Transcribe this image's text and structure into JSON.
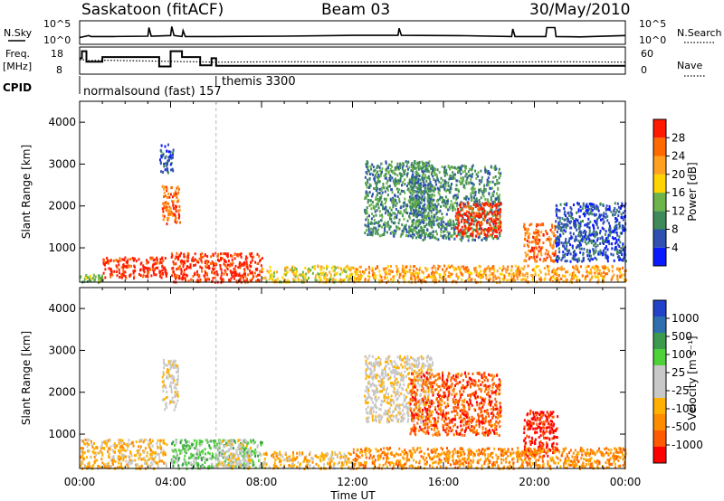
{
  "header": {
    "station": "Saskatoon (fitACF)",
    "beam": "Beam 03",
    "date": "30/May/2010"
  },
  "colors": {
    "power": [
      "#0a1aff",
      "#2f50b0",
      "#3e8a5a",
      "#6db54a",
      "#ffd400",
      "#ffa020",
      "#ff6a00",
      "#ff1a00"
    ],
    "velocity": [
      "#ff0000",
      "#ff5a00",
      "#ff8c00",
      "#ffb000",
      "#c8c8c8",
      "#c8c8c8",
      "#4fd13a",
      "#3c9a4f",
      "#2f6fb0",
      "#2342c8"
    ]
  },
  "chart_data": [
    {
      "type": "line",
      "name": "n-sky-n-search",
      "left_label": "N.Sky",
      "right_label": "N.Search",
      "ytick_left": [
        "10^5",
        "10^0"
      ],
      "ytick_right": [
        "10^5",
        "10^0"
      ],
      "xlim": [
        0,
        24
      ],
      "series": [
        {
          "name": "N.Sky",
          "x": [
            0,
            0.4,
            0.5,
            1.5,
            3.0,
            3.05,
            3.15,
            4.0,
            4.05,
            4.15,
            4.5,
            4.55,
            4.65,
            6,
            9,
            12,
            14,
            14.05,
            14.15,
            17,
            19.0,
            19.05,
            19.15,
            20.5,
            20.55,
            20.9,
            20.95,
            22,
            24
          ],
          "y": [
            0.25,
            0.35,
            0.3,
            0.3,
            0.32,
            0.75,
            0.32,
            0.35,
            0.8,
            0.35,
            0.3,
            0.6,
            0.3,
            0.3,
            0.32,
            0.36,
            0.36,
            0.72,
            0.36,
            0.34,
            0.3,
            0.68,
            0.3,
            0.3,
            0.75,
            0.75,
            0.3,
            0.28,
            0.35
          ]
        }
      ]
    },
    {
      "type": "line",
      "name": "freq-nave",
      "left_label": "Freq.",
      "left_unit": "[MHz]",
      "right_label": "Nave",
      "ytick_left": [
        "18",
        "8"
      ],
      "ytick_right": [
        "60",
        "0"
      ],
      "cpid_label": "CPID",
      "program_labels": [
        "normalsound (fast) 157",
        "themis 3300"
      ],
      "program_change_x": 6,
      "series": [
        {
          "name": "Freq.",
          "x": [
            0,
            0.1,
            0.1,
            0.3,
            0.3,
            1.0,
            1.0,
            3.5,
            3.5,
            4.0,
            4.0,
            4.5,
            4.5,
            5.3,
            5.3,
            5.8,
            5.8,
            6.0,
            6.0,
            24
          ],
          "y": [
            14,
            14,
            17,
            17,
            12.5,
            12.5,
            14.5,
            14.5,
            10.5,
            10.5,
            17,
            17,
            14.5,
            14.5,
            11,
            11,
            14,
            14,
            10.8,
            10.8
          ]
        },
        {
          "name": "Nave",
          "x": [
            0,
            0.3,
            0.3,
            1.0,
            6,
            9,
            12,
            15,
            18,
            21,
            24
          ],
          "y": [
            32,
            32,
            30,
            31,
            26,
            27,
            26,
            27,
            26,
            27,
            26
          ]
        }
      ]
    },
    {
      "type": "heatmap",
      "name": "power",
      "ylabel": "Slant Range [km]",
      "colorbar_label": "Power [dB]",
      "colorbar_ticks": [
        "28",
        "24",
        "20",
        "16",
        "12",
        "8",
        "4"
      ],
      "xlim": [
        0,
        24
      ],
      "ylim": [
        180,
        4500
      ],
      "yticks": [
        1000,
        2000,
        3000,
        4000
      ],
      "blobs": [
        {
          "x0": 0.0,
          "x1": 1.0,
          "r0": 200,
          "r1": 400,
          "level": 3
        },
        {
          "x0": 1.0,
          "x1": 3.8,
          "r0": 300,
          "r1": 800,
          "level": 7
        },
        {
          "x0": 3.6,
          "x1": 4.4,
          "r0": 1600,
          "r1": 2500,
          "level": 6
        },
        {
          "x0": 3.5,
          "x1": 4.1,
          "r0": 2800,
          "r1": 3500,
          "level": 1
        },
        {
          "x0": 4.0,
          "x1": 8.0,
          "r0": 200,
          "r1": 900,
          "level": 7
        },
        {
          "x0": 8.0,
          "x1": 12.0,
          "r0": 200,
          "r1": 600,
          "level": 4
        },
        {
          "x0": 12.5,
          "x1": 15.5,
          "r0": 1300,
          "r1": 3100,
          "level": 2
        },
        {
          "x0": 14.5,
          "x1": 18.5,
          "r0": 1200,
          "r1": 3000,
          "level": 2
        },
        {
          "x0": 16.5,
          "x1": 18.5,
          "r0": 1300,
          "r1": 2100,
          "level": 7
        },
        {
          "x0": 19.5,
          "x1": 20.9,
          "r0": 700,
          "r1": 1600,
          "level": 6
        },
        {
          "x0": 12.0,
          "x1": 24.0,
          "r0": 200,
          "r1": 600,
          "level": 5
        },
        {
          "x0": 20.9,
          "x1": 24.0,
          "r0": 700,
          "r1": 2100,
          "level": 1
        }
      ]
    },
    {
      "type": "heatmap",
      "name": "velocity",
      "ylabel": "Slant Range [km]",
      "colorbar_label": "Velocity [m s⁻¹]",
      "colorbar_ticks": [
        "1000",
        "500",
        "100",
        "25",
        "-25",
        "-100",
        "-500",
        "-1000"
      ],
      "xlabel": "Time UT",
      "xticks": [
        "00:00",
        "04:00",
        "08:00",
        "12:00",
        "16:00",
        "20:00",
        "00:00"
      ],
      "xlim": [
        0,
        24
      ],
      "ylim": [
        180,
        4500
      ],
      "yticks": [
        1000,
        2000,
        3000,
        4000
      ],
      "blobs": [
        {
          "x0": 0.0,
          "x1": 3.8,
          "r0": 200,
          "r1": 900,
          "level": 3
        },
        {
          "x0": 3.6,
          "x1": 4.3,
          "r0": 1600,
          "r1": 2800,
          "level": 4
        },
        {
          "x0": 4.0,
          "x1": 8.0,
          "r0": 200,
          "r1": 900,
          "level": 6
        },
        {
          "x0": 6.0,
          "x1": 7.5,
          "r0": 200,
          "r1": 900,
          "level": 4
        },
        {
          "x0": 8.0,
          "x1": 12.0,
          "r0": 200,
          "r1": 600,
          "level": 3
        },
        {
          "x0": 12.5,
          "x1": 15.5,
          "r0": 1300,
          "r1": 2900,
          "level": 4
        },
        {
          "x0": 14.5,
          "x1": 18.5,
          "r0": 1000,
          "r1": 2500,
          "level": 1
        },
        {
          "x0": 19.5,
          "x1": 21.0,
          "r0": 500,
          "r1": 1600,
          "level": 0
        },
        {
          "x0": 12.0,
          "x1": 24.0,
          "r0": 200,
          "r1": 700,
          "level": 2
        }
      ]
    }
  ]
}
